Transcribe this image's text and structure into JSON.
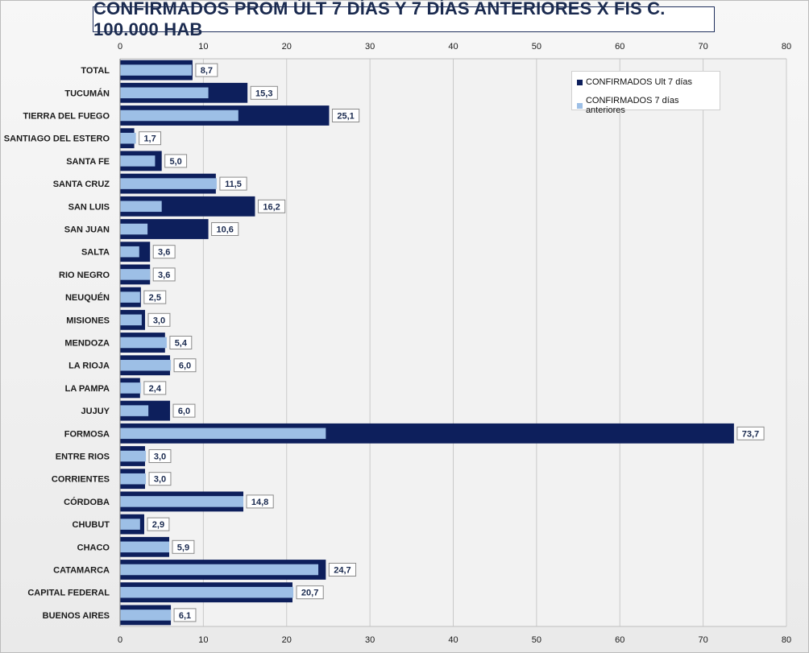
{
  "chart_data": {
    "type": "bar",
    "orientation": "horizontal",
    "title": "CONFIRMADOS PROM ÚLT 7 DÍAS Y 7 DÍAS ANTERIORES X FIS C. 100.000 HAB",
    "categories": [
      "TOTAL",
      "TUCUMÁN",
      "TIERRA  DEL FUEGO",
      "SANTIAGO  DEL ESTERO",
      "SANTA  FE",
      "SANTA  CRUZ",
      "SAN LUIS",
      "SAN JUAN",
      "SALTA",
      "RIO  NEGRO",
      "NEUQUÉN",
      "MISIONES",
      "MENDOZA",
      "LA RIOJA",
      "LA PAMPA",
      "JUJUY",
      "FORMOSA",
      "ENTRE  RIOS",
      "CORRIENTES",
      "CÓRDOBA",
      "CHUBUT",
      "CHACO",
      "CATAMARCA",
      "CAPITAL FEDERAL",
      "BUENOS  AIRES"
    ],
    "series": [
      {
        "name": "CONFIRMADOS Ult 7 días",
        "color": "#0d1f5c",
        "values": [
          8.7,
          15.3,
          25.1,
          1.7,
          5.0,
          11.5,
          16.2,
          10.6,
          3.6,
          3.6,
          2.5,
          3.0,
          5.4,
          6.0,
          2.4,
          6.0,
          73.7,
          3.0,
          3.0,
          14.8,
          2.9,
          5.9,
          24.7,
          20.7,
          6.1
        ],
        "labels": [
          "8,7",
          "15,3",
          "25,1",
          "1,7",
          "5,0",
          "11,5",
          "16,2",
          "10,6",
          "3,6",
          "3,6",
          "2,5",
          "3,0",
          "5,4",
          "6,0",
          "2,4",
          "6,0",
          "73,7",
          "3,0",
          "3,0",
          "14,8",
          "2,9",
          "5,9",
          "24,7",
          "20,7",
          "6,1"
        ]
      },
      {
        "name": "CONFIRMADOS 7 días anteriores",
        "color": "#9dbfe6",
        "values": [
          8.6,
          10.6,
          14.2,
          1.9,
          4.2,
          11.6,
          5.0,
          3.3,
          2.3,
          3.6,
          2.4,
          2.6,
          5.6,
          6.1,
          2.5,
          3.4,
          24.7,
          3.1,
          3.1,
          14.8,
          2.4,
          5.9,
          23.8,
          20.8,
          6.1
        ]
      }
    ],
    "xlim": [
      0,
      80
    ],
    "xticks": [
      "0",
      "10",
      "20",
      "30",
      "40",
      "50",
      "60",
      "70",
      "80"
    ],
    "grid": true,
    "legend_position": "top-right"
  }
}
